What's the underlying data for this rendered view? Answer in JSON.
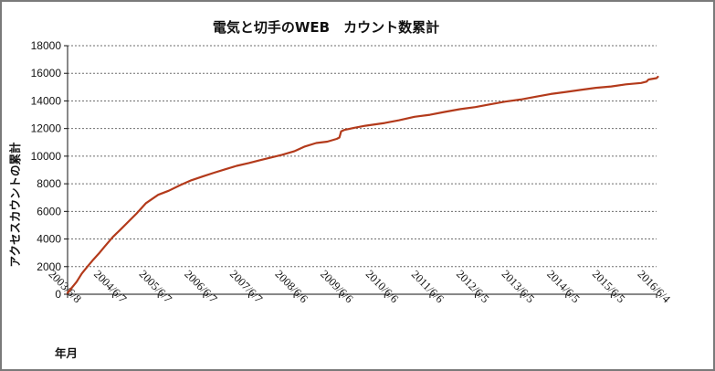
{
  "chart_data": {
    "type": "line",
    "title": "電気と切手のWEB　カウント数累計",
    "xlabel": "年月",
    "ylabel": "アクセスカウントの累計",
    "ylim": [
      0,
      18000
    ],
    "yticks": [
      0,
      2000,
      4000,
      6000,
      8000,
      10000,
      12000,
      14000,
      16000,
      18000
    ],
    "xlim": [
      "2003-06-08",
      "2016-06-04"
    ],
    "xticks": [
      "2003/6/8",
      "2004/6/7",
      "2005/6/7",
      "2006/6/7",
      "2007/6/7",
      "2008/6/6",
      "2009/6/6",
      "2010/6/6",
      "2011/6/6",
      "2012/6/5",
      "2013/6/5",
      "2014/6/5",
      "2015/6/5",
      "2016/6/4"
    ],
    "grid": true,
    "line_color": "#b33a1b",
    "series": [
      {
        "x": [
          "2003-06-08",
          "2003-07-15",
          "2003-08-20",
          "2003-10-01",
          "2003-11-15",
          "2004-01-01",
          "2004-02-15",
          "2004-04-01",
          "2004-06-07",
          "2004-08-15",
          "2004-10-15",
          "2004-12-15",
          "2005-03-01",
          "2005-06-07",
          "2005-09-01",
          "2005-12-01",
          "2006-03-01",
          "2006-06-07",
          "2006-09-01",
          "2006-12-01",
          "2007-03-01",
          "2007-06-07",
          "2007-09-01",
          "2007-12-01",
          "2008-03-01",
          "2008-06-06",
          "2008-09-01",
          "2008-12-01",
          "2009-03-01",
          "2009-05-15",
          "2009-06-06",
          "2009-06-20",
          "2009-07-15",
          "2009-10-01",
          "2010-01-01",
          "2010-06-06",
          "2010-10-01",
          "2011-02-01",
          "2011-06-06",
          "2011-10-01",
          "2012-02-01",
          "2012-06-05",
          "2012-10-01",
          "2013-02-01",
          "2013-06-05",
          "2013-10-01",
          "2014-02-01",
          "2014-06-05",
          "2014-10-01",
          "2015-02-01",
          "2015-06-05",
          "2015-10-01",
          "2016-02-01",
          "2016-03-15",
          "2016-04-01",
          "2016-06-04",
          "2016-06-15"
        ],
        "values": [
          100,
          500,
          900,
          1500,
          2000,
          2500,
          2950,
          3450,
          4150,
          4750,
          5300,
          5850,
          6600,
          7200,
          7500,
          7900,
          8250,
          8550,
          8800,
          9050,
          9300,
          9500,
          9700,
          9900,
          10100,
          10350,
          10700,
          10950,
          11050,
          11250,
          11350,
          11800,
          11900,
          12050,
          12200,
          12400,
          12600,
          12850,
          13000,
          13200,
          13400,
          13550,
          13750,
          13950,
          14100,
          14300,
          14500,
          14650,
          14800,
          14950,
          15050,
          15200,
          15300,
          15400,
          15550,
          15650,
          15750
        ]
      }
    ]
  }
}
